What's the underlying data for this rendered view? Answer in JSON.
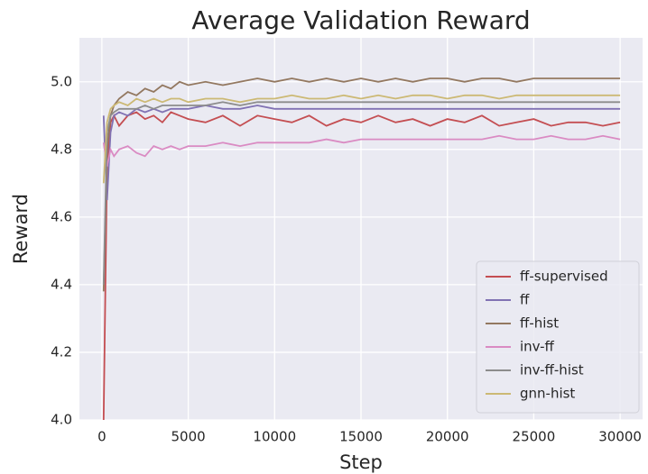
{
  "chart_data": {
    "type": "line",
    "title": "Average Validation Reward",
    "x_label": "Step",
    "y_label": "Reward",
    "x": [
      100,
      300,
      500,
      700,
      1000,
      1500,
      2000,
      2500,
      3000,
      3500,
      4000,
      4500,
      5000,
      6000,
      7000,
      8000,
      9000,
      10000,
      11000,
      12000,
      13000,
      14000,
      15000,
      16000,
      17000,
      18000,
      19000,
      20000,
      21000,
      22000,
      23000,
      24000,
      25000,
      26000,
      27000,
      28000,
      29000,
      30000
    ],
    "series": [
      {
        "name": "ff-supervised",
        "color": "#c44e52",
        "values": [
          4.0,
          4.75,
          4.88,
          4.9,
          4.87,
          4.9,
          4.91,
          4.89,
          4.9,
          4.88,
          4.91,
          4.9,
          4.89,
          4.88,
          4.9,
          4.87,
          4.9,
          4.89,
          4.88,
          4.9,
          4.87,
          4.89,
          4.88,
          4.9,
          4.88,
          4.89,
          4.87,
          4.89,
          4.88,
          4.9,
          4.87,
          4.88,
          4.89,
          4.87,
          4.88,
          4.88,
          4.87,
          4.88
        ]
      },
      {
        "name": "ff",
        "color": "#8172b3",
        "values": [
          4.9,
          4.65,
          4.85,
          4.9,
          4.91,
          4.9,
          4.92,
          4.91,
          4.92,
          4.91,
          4.92,
          4.92,
          4.92,
          4.93,
          4.92,
          4.92,
          4.93,
          4.92,
          4.92,
          4.92,
          4.92,
          4.92,
          4.92,
          4.92,
          4.92,
          4.92,
          4.92,
          4.92,
          4.92,
          4.92,
          4.92,
          4.92,
          4.92,
          4.92,
          4.92,
          4.92,
          4.92,
          4.92
        ]
      },
      {
        "name": "ff-hist",
        "color": "#937860",
        "values": [
          4.38,
          4.8,
          4.9,
          4.93,
          4.95,
          4.97,
          4.96,
          4.98,
          4.97,
          4.99,
          4.98,
          5.0,
          4.99,
          5.0,
          4.99,
          5.0,
          5.01,
          5.0,
          5.01,
          5.0,
          5.01,
          5.0,
          5.01,
          5.0,
          5.01,
          5.0,
          5.01,
          5.01,
          5.0,
          5.01,
          5.01,
          5.0,
          5.01,
          5.01,
          5.01,
          5.01,
          5.01,
          5.01
        ]
      },
      {
        "name": "inv-ff",
        "color": "#da8bc3",
        "values": [
          4.82,
          4.75,
          4.8,
          4.78,
          4.8,
          4.81,
          4.79,
          4.78,
          4.81,
          4.8,
          4.81,
          4.8,
          4.81,
          4.81,
          4.82,
          4.81,
          4.82,
          4.82,
          4.82,
          4.82,
          4.83,
          4.82,
          4.83,
          4.83,
          4.83,
          4.83,
          4.83,
          4.83,
          4.83,
          4.83,
          4.84,
          4.83,
          4.83,
          4.84,
          4.83,
          4.83,
          4.84,
          4.83
        ]
      },
      {
        "name": "inv-ff-hist",
        "color": "#8c8c8c",
        "values": [
          4.4,
          4.85,
          4.9,
          4.91,
          4.92,
          4.92,
          4.92,
          4.93,
          4.92,
          4.93,
          4.93,
          4.93,
          4.93,
          4.93,
          4.94,
          4.93,
          4.94,
          4.94,
          4.94,
          4.94,
          4.94,
          4.94,
          4.94,
          4.94,
          4.94,
          4.94,
          4.94,
          4.94,
          4.94,
          4.94,
          4.94,
          4.94,
          4.94,
          4.94,
          4.94,
          4.94,
          4.94,
          4.94
        ]
      },
      {
        "name": "gnn-hist",
        "color": "#ccb974",
        "values": [
          4.7,
          4.88,
          4.92,
          4.93,
          4.94,
          4.93,
          4.95,
          4.94,
          4.95,
          4.94,
          4.95,
          4.95,
          4.94,
          4.95,
          4.95,
          4.94,
          4.95,
          4.95,
          4.96,
          4.95,
          4.95,
          4.96,
          4.95,
          4.96,
          4.95,
          4.96,
          4.96,
          4.95,
          4.96,
          4.96,
          4.95,
          4.96,
          4.96,
          4.96,
          4.96,
          4.96,
          4.96,
          4.96
        ]
      }
    ],
    "xlim": [
      -1300,
      31300
    ],
    "ylim": [
      4.0,
      5.13
    ],
    "xticks": [
      0,
      5000,
      10000,
      15000,
      20000,
      25000,
      30000
    ],
    "yticks": [
      {
        "value": 4,
        "label": "4.0"
      },
      4.2,
      4.4,
      4.6,
      4.8,
      {
        "value": 5,
        "label": "5.0"
      }
    ],
    "grid": true,
    "legend": "lower right"
  }
}
